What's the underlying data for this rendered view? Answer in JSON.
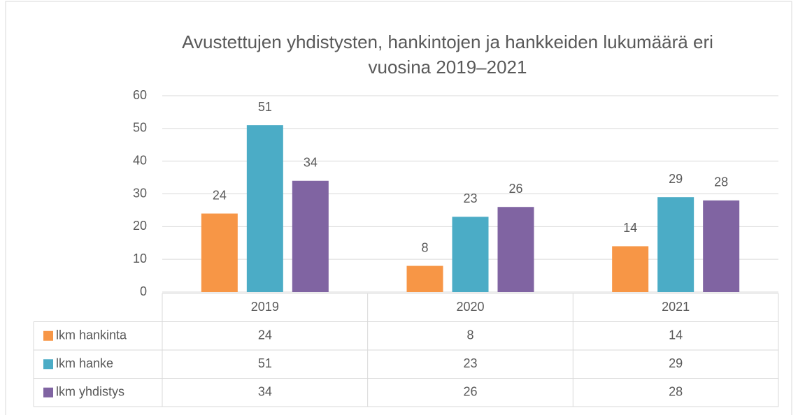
{
  "chart_data": {
    "type": "bar",
    "title": [
      "Avustettujen yhdistysten, hankintojen ja hankkeiden lukumäärä eri",
      "vuosina 2019–2021"
    ],
    "categories": [
      "2019",
      "2020",
      "2021"
    ],
    "series": [
      {
        "name": "lkm hankinta",
        "color": "#f79646",
        "values": [
          24,
          8,
          14
        ]
      },
      {
        "name": "lkm hanke",
        "color": "#4bacc6",
        "values": [
          51,
          23,
          29
        ]
      },
      {
        "name": "lkm yhdistys",
        "color": "#8064a2",
        "values": [
          34,
          26,
          28
        ]
      }
    ],
    "ylim": [
      0,
      60
    ],
    "yticks": [
      0,
      10,
      20,
      30,
      40,
      50,
      60
    ],
    "grid": true,
    "data_table": true
  }
}
